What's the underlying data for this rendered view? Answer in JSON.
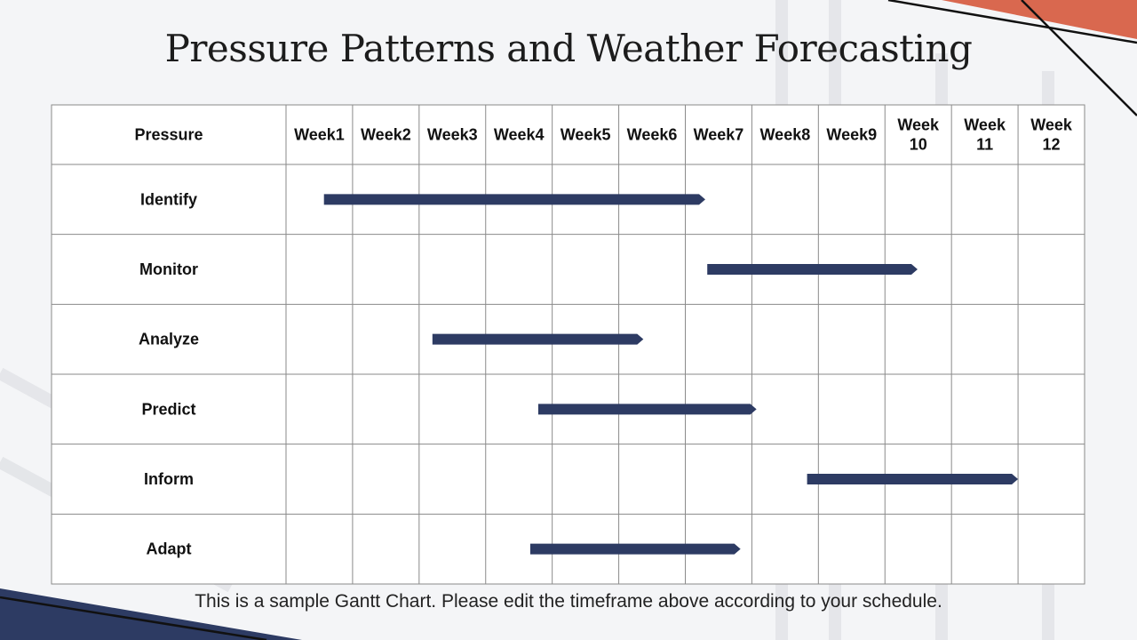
{
  "slide": {
    "title": "Pressure Patterns and Weather Forecasting",
    "footnote": "This is a sample Gantt Chart. Please edit the timeframe above according to your schedule."
  },
  "colors": {
    "bar": "#2d3b63",
    "accent_orange": "#d9684f",
    "accent_navy": "#2d3b63",
    "grid": "#8a8a8a"
  },
  "chart_data": {
    "type": "table",
    "header_label": "Pressure",
    "columns": [
      "Week1",
      "Week2",
      "Week3",
      "Week4",
      "Week5",
      "Week6",
      "Week7",
      "Week8",
      "Week9",
      "Week 10",
      "Week 11",
      "Week 12"
    ],
    "tasks": [
      {
        "name": "Identify",
        "start_week": 1.57,
        "end_week": 7.3
      },
      {
        "name": "Monitor",
        "start_week": 7.33,
        "end_week": 10.49
      },
      {
        "name": "Analyze",
        "start_week": 3.2,
        "end_week": 6.37
      },
      {
        "name": "Predict",
        "start_week": 4.79,
        "end_week": 8.07
      },
      {
        "name": "Inform",
        "start_week": 8.83,
        "end_week": 12.0
      },
      {
        "name": "Adapt",
        "start_week": 4.67,
        "end_week": 7.83
      }
    ]
  }
}
